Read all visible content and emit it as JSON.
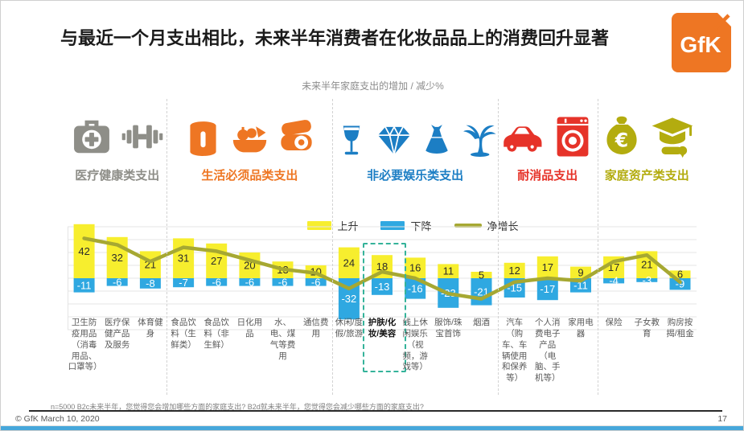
{
  "slide": {
    "title": "与最近一个月支出相比，未来半年消费者在化妆品品上的消费回升显著",
    "logo_text": "GfK",
    "subtitle": "未来半年家庭支出的增加 / 减少%",
    "footnote": "n=5000  B2c未来半年，您觉得您会增加哪些方面的家庭支出? B2d就未来半年，您觉得您会减少哪些方面的家庭支出?",
    "copyright": "© GfK March 10, 2020",
    "page_number": "17"
  },
  "colors": {
    "brand_orange": "#ee7623",
    "bar_up": "#f7ee2e",
    "bar_down": "#2fa8e1",
    "net_line": "#a6a832",
    "group_gray": "#8e8e88",
    "group_orange": "#ee7623",
    "group_blue": "#1c7ec4",
    "group_red": "#e63329",
    "group_olive": "#b3ac0f",
    "highlight_dash": "#35b39a"
  },
  "legend": {
    "up": "上升",
    "down": "下降",
    "net": "净增长"
  },
  "groups": [
    {
      "label": "医疗健康类支出",
      "color_key": "group_gray",
      "icons": [
        "first-aid-kit",
        "dumbbell"
      ],
      "cols": 3
    },
    {
      "label": "生活必须品类支出",
      "color_key": "group_orange",
      "icons": [
        "food-can",
        "vegetable-basket",
        "bacon-egg"
      ],
      "cols": 5
    },
    {
      "label": "非必要娱乐类支出",
      "color_key": "group_blue",
      "icons": [
        "wine-glass",
        "diamond",
        "dress",
        "palm-tree"
      ],
      "cols": 5
    },
    {
      "label": "耐消品支出",
      "color_key": "group_red",
      "icons": [
        "car",
        "washing-machine"
      ],
      "cols": 3
    },
    {
      "label": "家庭资产类支出",
      "color_key": "group_olive",
      "icons": [
        "money-bag",
        "graduation-cap"
      ],
      "cols": 3
    }
  ],
  "chart_data": {
    "type": "bar",
    "title": "未来半年家庭支出的增加 / 减少%",
    "categories": [
      "卫生防疫用品（消毒用品、口罩等）",
      "医疗保健产品及服务",
      "体育健身",
      "食品饮料（生鲜类）",
      "食品饮料（非生鲜）",
      "日化用品",
      "水、电、煤气等费用",
      "通信费用",
      "休闲/度假/旅游",
      "护肤/化妆/美容",
      "线上休闲娱乐（视频，游戏等）",
      "服饰/珠宝首饰",
      "烟酒",
      "汽车（购车、车辆使用和保养等）",
      "个人消费电子产品（电脑、手机等）",
      "家用电器",
      "保险",
      "子女教育",
      "购房按揭/租金"
    ],
    "series": [
      {
        "name": "上升",
        "type": "bar",
        "color": "#f7ee2e",
        "values": [
          42,
          32,
          21,
          31,
          27,
          20,
          13,
          10,
          24,
          18,
          16,
          11,
          5,
          12,
          17,
          9,
          17,
          21,
          6
        ]
      },
      {
        "name": "下降",
        "type": "bar",
        "color": "#2fa8e1",
        "values": [
          -11,
          -6,
          -8,
          -7,
          -6,
          -6,
          -6,
          -6,
          -32,
          -13,
          -16,
          -23,
          -21,
          -15,
          -17,
          -11,
          -4,
          -3,
          -9
        ]
      },
      {
        "name": "净增长",
        "type": "line",
        "color": "#a6a832",
        "values": [
          31,
          26,
          13,
          24,
          21,
          14,
          7,
          4,
          -8,
          5,
          0,
          -12,
          -16,
          -3,
          0,
          -2,
          13,
          18,
          -3
        ]
      }
    ],
    "highlighted_category": "护肤/化妆/美容",
    "highlighted_index": 9,
    "ylim": [
      -40,
      45
    ],
    "grid": "horizontal",
    "legend_position": "top-center"
  }
}
